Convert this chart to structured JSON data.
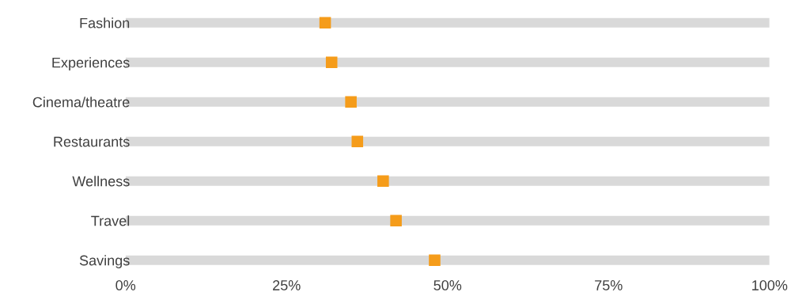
{
  "chart_data": {
    "type": "bar",
    "orientation": "horizontal",
    "categories": [
      "Fashion",
      "Experiences",
      "Cinema/theatre",
      "Restaurants",
      "Wellness",
      "Travel",
      "Savings"
    ],
    "series": [
      {
        "color": "#d9d9d9",
        "values": [
          100,
          100,
          100,
          100,
          100,
          100,
          100
        ]
      },
      {
        "type": "scatter",
        "color": "#f59c1a",
        "marker": "square",
        "values": [
          31,
          32,
          35,
          36,
          40,
          42,
          48
        ]
      }
    ],
    "xlim": [
      0,
      100
    ],
    "xticks": [
      {
        "value": 0,
        "label": "0%"
      },
      {
        "value": 25,
        "label": "25%"
      },
      {
        "value": 50,
        "label": "50%"
      },
      {
        "value": 75,
        "label": "75%"
      },
      {
        "value": 100,
        "label": "100%"
      }
    ],
    "grid": false,
    "legend": false
  }
}
